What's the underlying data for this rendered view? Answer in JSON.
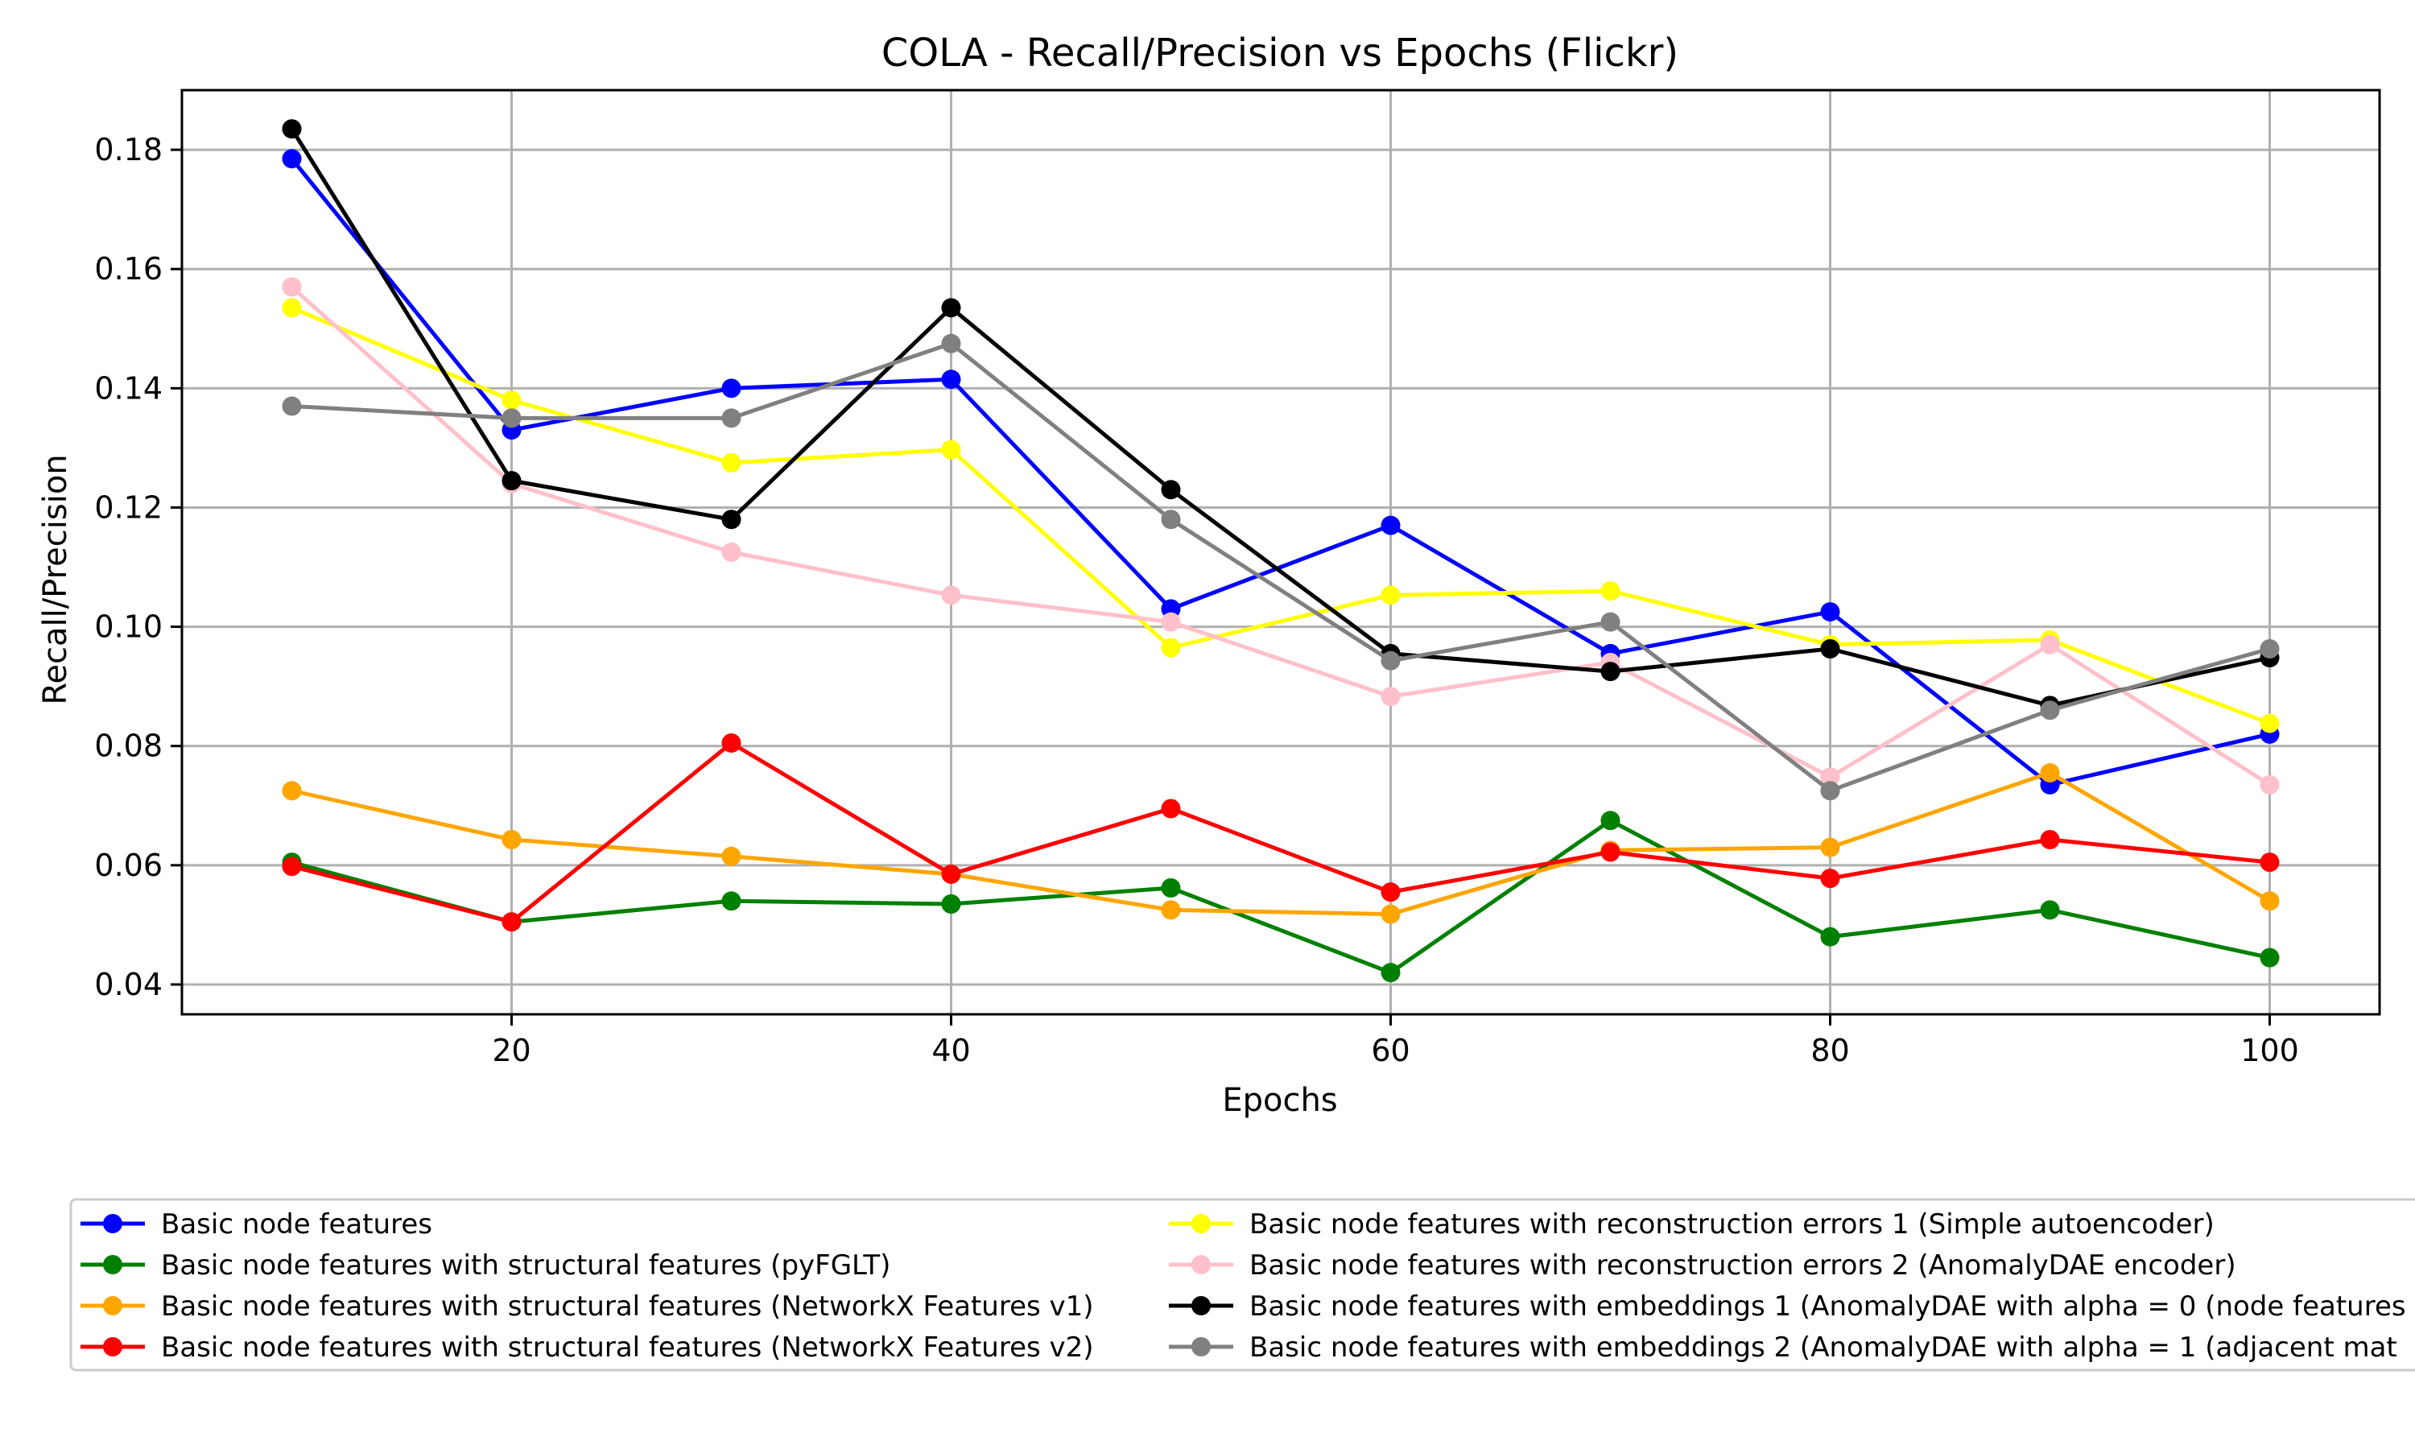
{
  "chart_data": {
    "type": "line",
    "title": "COLA - Recall/Precision vs Epochs (Flickr)",
    "xlabel": "Epochs",
    "ylabel": "Recall/Precision",
    "xlim": [
      5,
      105
    ],
    "ylim": [
      0.035,
      0.19
    ],
    "xticks": [
      20,
      40,
      60,
      80,
      100
    ],
    "yticks": [
      0.04,
      0.06,
      0.08,
      0.1,
      0.12,
      0.14,
      0.16,
      0.18
    ],
    "ytick_labels": [
      "0.04",
      "0.06",
      "0.08",
      "0.10",
      "0.12",
      "0.14",
      "0.16",
      "0.18"
    ],
    "grid": true,
    "legend_position": "bottom",
    "x": [
      10,
      20,
      30,
      40,
      50,
      60,
      70,
      80,
      90,
      100
    ],
    "series": [
      {
        "name": "Basic node features",
        "color": "#0000ff",
        "values": [
          0.1785,
          0.133,
          0.14,
          0.1415,
          0.103,
          0.117,
          0.0955,
          0.1025,
          0.0735,
          0.082
        ]
      },
      {
        "name": "Basic node features with structural features (pyFGLT)",
        "color": "#008000",
        "values": [
          0.0605,
          0.0505,
          0.054,
          0.0535,
          0.0562,
          0.042,
          0.0675,
          0.048,
          0.0525,
          0.0445
        ]
      },
      {
        "name": "Basic node features with structural features (NetworkX Features v1)",
        "color": "#ffa500",
        "values": [
          0.0725,
          0.0643,
          0.0615,
          0.0585,
          0.0525,
          0.0518,
          0.0625,
          0.063,
          0.0755,
          0.054
        ]
      },
      {
        "name": "Basic node features with structural features (NetworkX Features v2)",
        "color": "#ff0000",
        "values": [
          0.0598,
          0.0505,
          0.0805,
          0.0585,
          0.0695,
          0.0555,
          0.0622,
          0.0578,
          0.0643,
          0.0605
        ]
      },
      {
        "name": "Basic node features with reconstruction errors 1 (Simple autoencoder)",
        "color": "#ffff00",
        "values": [
          0.1535,
          0.138,
          0.1275,
          0.1297,
          0.0965,
          0.1053,
          0.106,
          0.097,
          0.0978,
          0.0838
        ]
      },
      {
        "name": "Basic node features with reconstruction errors 2 (AnomalyDAE encoder)",
        "color": "#ffc0cb",
        "values": [
          0.157,
          0.124,
          0.1125,
          0.1053,
          0.1008,
          0.0883,
          0.094,
          0.0748,
          0.097,
          0.0735
        ]
      },
      {
        "name": "Basic node features with embeddings 1 (AnomalyDAE with alpha = 0 (node features",
        "color": "#000000",
        "values": [
          0.1835,
          0.1245,
          0.118,
          0.1535,
          0.123,
          0.0955,
          0.0925,
          0.0963,
          0.0868,
          0.0948
        ]
      },
      {
        "name": "Basic node features with embeddings 2 (AnomalyDAE with alpha = 1 (adjacent mat",
        "color": "#808080",
        "values": [
          0.137,
          0.135,
          0.135,
          0.1475,
          0.118,
          0.0943,
          0.1008,
          0.0725,
          0.086,
          0.0963
        ]
      }
    ]
  }
}
